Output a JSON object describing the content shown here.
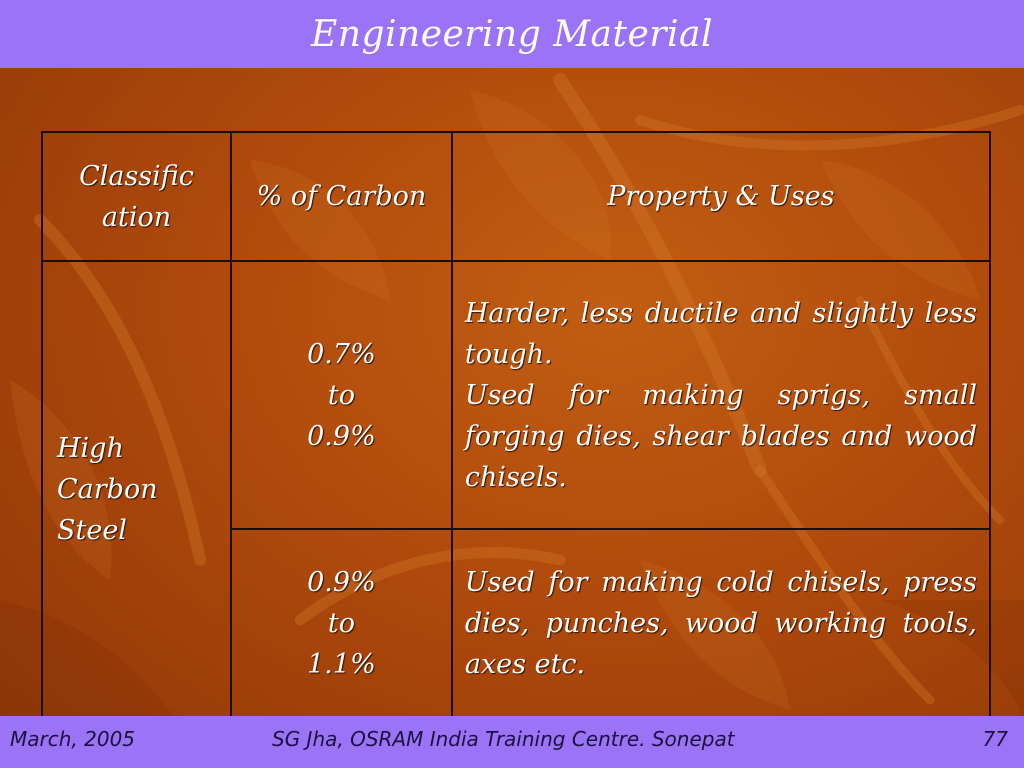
{
  "header": {
    "title": "Engineering Material"
  },
  "table": {
    "headers": [
      "Classific ation",
      "% of Carbon",
      "Property & Uses"
    ],
    "header_lines": {
      "classification": [
        "Classific",
        "ation"
      ],
      "carbon": "% of Carbon",
      "property": "Property & Uses"
    },
    "classification_lines": [
      "High",
      "Carbon",
      "Steel"
    ],
    "rows": [
      {
        "carbon_lines": [
          "0.7%",
          "to",
          "0.9%"
        ],
        "property_lines": [
          "Harder, less ductile and slightly less tough.",
          "Used for making sprigs, small forging dies, shear blades and wood chisels."
        ]
      },
      {
        "carbon_lines": [
          "0.9%",
          "to",
          "1.1%"
        ],
        "property_lines": [
          "Used for making cold chisels, press dies, punches, wood working tools, axes etc."
        ]
      }
    ]
  },
  "footer": {
    "date": "March, 2005",
    "center": "SG Jha, OSRAM India Training Centre. Sonepat",
    "page": "77"
  }
}
